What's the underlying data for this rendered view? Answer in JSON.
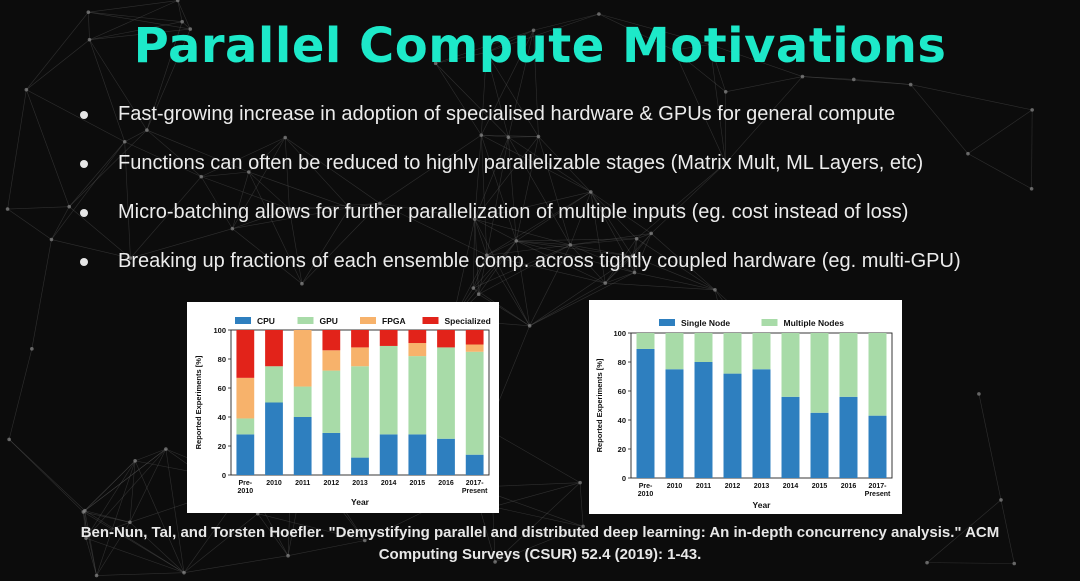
{
  "slide": {
    "title": "Parallel Compute Motivations",
    "title_color": "#1de9c9",
    "bullets": [
      "Fast-growing increase in adoption of specialised hardware & GPUs for general compute",
      "Functions can often be reduced to highly parallelizable stages (Matrix Mult, ML Layers, etc)",
      "Micro-batching allows for further parallelization of multiple inputs (eg. cost instead of loss)",
      "Breaking up fractions of each ensemble comp. across tightly coupled hardware (eg. multi-GPU)"
    ],
    "citation_line1": "Ben-Nun, Tal, and Torsten Hoefler. \"Demystifying parallel and distributed deep learning: An in-depth concurrency analysis.\" ACM",
    "citation_line2": "Computing Surveys (CSUR) 52.4 (2019): 1-43."
  },
  "chart_data": [
    {
      "type": "bar",
      "stacked": true,
      "categories": [
        "Pre-\n2010",
        "2010",
        "2011",
        "2012",
        "2013",
        "2014",
        "2015",
        "2016",
        "2017-\nPresent"
      ],
      "series": [
        {
          "name": "CPU",
          "color": "#2e7fbf",
          "values": [
            28,
            50,
            40,
            29,
            12,
            28,
            28,
            25,
            14
          ]
        },
        {
          "name": "GPU",
          "color": "#a8dba8",
          "values": [
            11,
            25,
            21,
            43,
            63,
            61,
            54,
            63,
            71
          ]
        },
        {
          "name": "FPGA",
          "color": "#f7b26b",
          "values": [
            28,
            0,
            39,
            14,
            13,
            0,
            9,
            0,
            5
          ]
        },
        {
          "name": "Specialized",
          "color": "#e2231a",
          "values": [
            33,
            25,
            0,
            14,
            12,
            11,
            9,
            12,
            10
          ]
        }
      ],
      "xlabel": "Year",
      "ylabel": "Reported Experiments [%]",
      "ylim": [
        0,
        100
      ],
      "yticks": [
        0,
        20,
        40,
        60,
        80,
        100
      ],
      "legend": "top"
    },
    {
      "type": "bar",
      "stacked": true,
      "categories": [
        "Pre-\n2010",
        "2010",
        "2011",
        "2012",
        "2013",
        "2014",
        "2015",
        "2016",
        "2017-\nPresent"
      ],
      "series": [
        {
          "name": "Single Node",
          "color": "#2e7fbf",
          "values": [
            89,
            75,
            80,
            72,
            75,
            56,
            45,
            56,
            43
          ]
        },
        {
          "name": "Multiple Nodes",
          "color": "#a8dba8",
          "values": [
            11,
            25,
            20,
            28,
            25,
            44,
            55,
            44,
            57
          ]
        }
      ],
      "xlabel": "Year",
      "ylabel": "Reported Experiments [%]",
      "ylim": [
        0,
        100
      ],
      "yticks": [
        0,
        20,
        40,
        60,
        80,
        100
      ],
      "legend": "top"
    }
  ]
}
